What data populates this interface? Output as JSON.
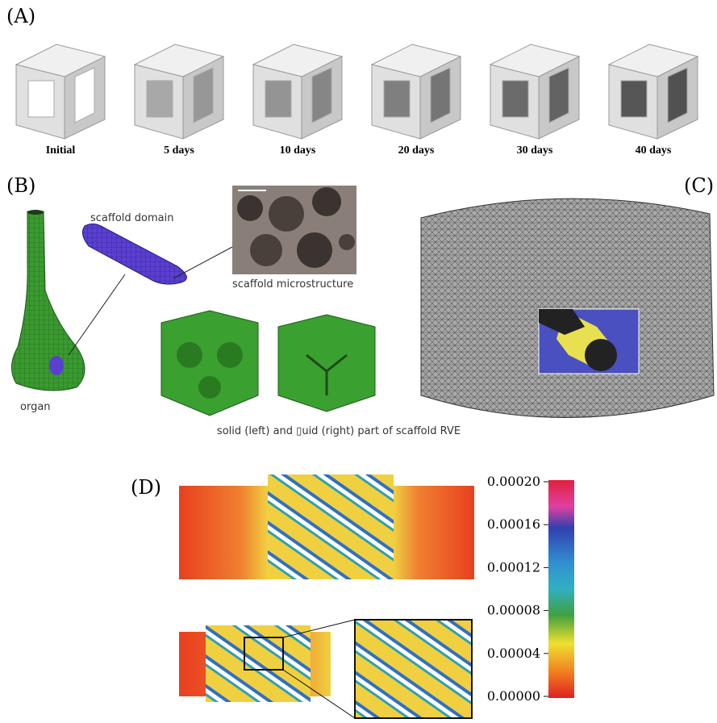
{
  "panel_a": {
    "label": "(A)",
    "stages": [
      "Initial",
      "5 days",
      "10 days",
      "20 days",
      "30 days",
      "40 days"
    ]
  },
  "panel_b": {
    "label": "(B)",
    "scaffold_domain": "scaffold domain",
    "scaffold_microstructure": "scaffold microstructure",
    "organ": "organ",
    "caption": "solid (left) and ▯uid (right) part of scaffold RVE"
  },
  "panel_c": {
    "label": "(C)"
  },
  "panel_d": {
    "label": "(D)",
    "colorbar_ticks": [
      "0.00020",
      "0.00016",
      "0.00012",
      "0.00008",
      "0.00004",
      "0.00000"
    ]
  }
}
